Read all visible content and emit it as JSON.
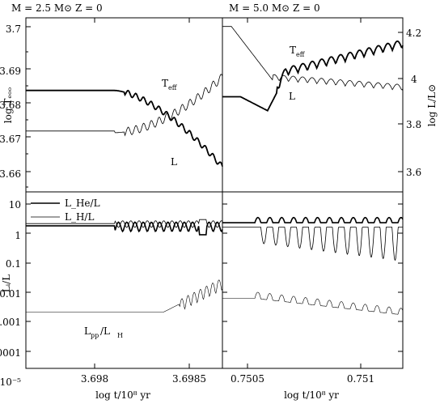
{
  "chart_data": [
    {
      "type": "line",
      "panel": "top-left",
      "title": "M = 2.5 M⊙  Z = 0",
      "ylabel": "log Tₑₒₒ",
      "ylim": [
        3.655,
        3.705
      ],
      "y_ticks": [
        "3.66",
        "3.67",
        "3.68",
        "3.69",
        "3.7"
      ],
      "xlim": [
        3.6977,
        3.69865
      ],
      "grid": false,
      "annotations": [
        "T",
        "eff",
        "L"
      ],
      "series": [
        {
          "name": "T_eff",
          "x": [
            3.6977,
            3.698,
            3.6982,
            3.6984,
            3.6985,
            3.6986
          ],
          "values": [
            3.6725,
            3.672,
            3.6745,
            3.6795,
            3.682,
            3.6885
          ]
        },
        {
          "name": "L",
          "right_axis": true,
          "x": [
            3.6977,
            3.698,
            3.6982,
            3.6984,
            3.6985,
            3.6986
          ],
          "values": [
            3.937,
            3.94,
            3.93,
            3.83,
            3.72,
            3.6
          ]
        }
      ]
    },
    {
      "type": "line",
      "panel": "top-right",
      "title": "M = 5.0 M⊙  Z = 0",
      "ylabel": "log L/L⊙",
      "ylim": [
        3.5,
        4.25
      ],
      "y_ticks": [
        "3.6",
        "3.8",
        "4",
        "4.2"
      ],
      "xlim": [
        0.75048,
        0.75116
      ],
      "grid": false,
      "annotations": [
        "T",
        "eff",
        "L"
      ],
      "series": [
        {
          "name": "T_eff",
          "left_axis": true,
          "x": [
            0.75048,
            0.7505,
            0.75056,
            0.7507,
            0.7509,
            0.75114
          ],
          "values": [
            3.6915,
            3.69,
            3.6895,
            3.6875,
            3.685,
            3.6835
          ]
        },
        {
          "name": "L",
          "x": [
            0.75048,
            0.7505,
            0.75056,
            0.7507,
            0.7509,
            0.75114
          ],
          "values": [
            3.91,
            3.91,
            3.86,
            3.985,
            4.05,
            4.12
          ]
        }
      ]
    },
    {
      "type": "line",
      "panel": "bottom-left",
      "ylabel": "Lᵢ/L",
      "y_log": true,
      "ylim": [
        1e-06,
        10
      ],
      "y_ticks": [
        "10",
        "1",
        "0.1",
        "0.01",
        "0.001",
        "0.0001",
        "10⁻⁵"
      ],
      "x_ticks": [
        "3.698",
        "3.6985"
      ],
      "xlim": [
        3.6977,
        3.69865
      ],
      "xlabel": "log t/10⁸ yr",
      "legend": {
        "placement": "top-left",
        "entries": [
          "L_He/L",
          "L_H/L"
        ]
      },
      "annotations": [
        "L",
        "pp",
        "/L",
        "H"
      ],
      "series": [
        {
          "name": "L_He/L",
          "values": [
            0.45,
            0.45,
            0.45,
            0.5
          ]
        },
        {
          "name": "L_H/L",
          "values": [
            0.55,
            0.55,
            0.55,
            0.5
          ]
        },
        {
          "name": "L_pp/L_H",
          "values": [
            0.00017,
            0.00016,
            0.00025,
            0.0025
          ]
        }
      ]
    },
    {
      "type": "line",
      "panel": "bottom-right",
      "y_log": true,
      "ylim": [
        1e-06,
        10
      ],
      "x_ticks": [
        "0.7505",
        "0.751"
      ],
      "xlim": [
        0.75048,
        0.75116
      ],
      "xlabel": "log t/10⁸ yr",
      "series": [
        {
          "name": "L_He/L",
          "values": [
            0.6,
            0.6,
            0.6,
            0.6
          ]
        },
        {
          "name": "L_H/L",
          "values": [
            0.4,
            0.4,
            0.4,
            0.15
          ]
        },
        {
          "name": "L_pp/L_H",
          "values": [
            0.0006,
            0.0004,
            0.0002,
            0.0001
          ]
        }
      ]
    }
  ]
}
